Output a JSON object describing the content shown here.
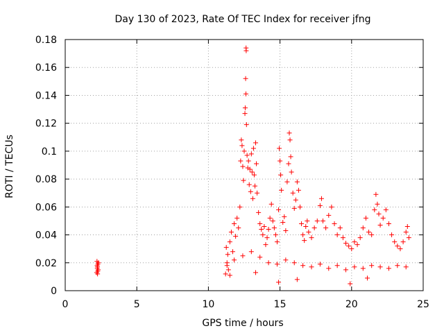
{
  "chart_data": {
    "type": "scatter",
    "title": "Day 130 of 2023, Rate Of TEC Index for receiver jfng",
    "xlabel": "GPS time / hours",
    "ylabel": "ROTI / TECUs",
    "xlim": [
      0,
      25
    ],
    "ylim": [
      0,
      0.18
    ],
    "xticks": [
      0,
      5,
      10,
      15,
      20,
      25
    ],
    "xtick_labels": [
      "0",
      "5",
      "10",
      "15",
      "20",
      "25"
    ],
    "yticks": [
      0,
      0.02,
      0.04,
      0.06,
      0.08,
      0.1,
      0.12,
      0.14,
      0.16,
      0.18
    ],
    "ytick_labels": [
      "0",
      "0.02",
      "0.04",
      "0.06",
      "0.08",
      "0.1",
      "0.12",
      "0.14",
      "0.16",
      "0.18"
    ],
    "grid": true,
    "legend": "none",
    "marker": "plus",
    "color": "#ff0000",
    "series": [
      {
        "name": "ROTI",
        "points": [
          [
            2.2,
            0.013
          ],
          [
            2.22,
            0.021
          ],
          [
            2.24,
            0.016
          ],
          [
            2.26,
            0.012
          ],
          [
            2.28,
            0.019
          ],
          [
            2.3,
            0.015
          ],
          [
            2.32,
            0.02
          ],
          [
            2.25,
            0.017
          ],
          [
            2.27,
            0.014
          ],
          [
            2.23,
            0.018
          ],
          [
            11.2,
            0.012
          ],
          [
            11.25,
            0.031
          ],
          [
            11.3,
            0.02
          ],
          [
            11.35,
            0.026
          ],
          [
            11.4,
            0.015
          ],
          [
            11.5,
            0.035
          ],
          [
            11.6,
            0.042
          ],
          [
            11.7,
            0.028
          ],
          [
            11.8,
            0.048
          ],
          [
            11.9,
            0.039
          ],
          [
            12.0,
            0.052
          ],
          [
            12.1,
            0.045
          ],
          [
            12.2,
            0.06
          ],
          [
            12.25,
            0.093
          ],
          [
            12.3,
            0.108
          ],
          [
            12.35,
            0.104
          ],
          [
            12.4,
            0.089
          ],
          [
            12.45,
            0.079
          ],
          [
            12.5,
            0.1
          ],
          [
            12.55,
            0.127
          ],
          [
            12.57,
            0.131
          ],
          [
            12.6,
            0.152
          ],
          [
            12.62,
            0.141
          ],
          [
            12.63,
            0.174
          ],
          [
            12.64,
            0.172
          ],
          [
            12.66,
            0.119
          ],
          [
            12.7,
            0.097
          ],
          [
            12.75,
            0.088
          ],
          [
            12.8,
            0.093
          ],
          [
            12.85,
            0.076
          ],
          [
            12.9,
            0.087
          ],
          [
            12.95,
            0.071
          ],
          [
            13.0,
            0.098
          ],
          [
            13.05,
            0.085
          ],
          [
            13.1,
            0.066
          ],
          [
            13.15,
            0.102
          ],
          [
            13.2,
            0.083
          ],
          [
            13.25,
            0.075
          ],
          [
            13.3,
            0.106
          ],
          [
            13.35,
            0.091
          ],
          [
            13.4,
            0.07
          ],
          [
            13.5,
            0.056
          ],
          [
            13.6,
            0.048
          ],
          [
            13.7,
            0.044
          ],
          [
            13.8,
            0.04
          ],
          [
            13.9,
            0.046
          ],
          [
            14.0,
            0.033
          ],
          [
            14.1,
            0.038
          ],
          [
            14.2,
            0.044
          ],
          [
            14.3,
            0.052
          ],
          [
            14.4,
            0.062
          ],
          [
            14.5,
            0.05
          ],
          [
            14.6,
            0.045
          ],
          [
            14.7,
            0.04
          ],
          [
            14.8,
            0.035
          ],
          [
            14.9,
            0.058
          ],
          [
            14.95,
            0.102
          ],
          [
            15.0,
            0.093
          ],
          [
            15.05,
            0.083
          ],
          [
            15.1,
            0.072
          ],
          [
            15.2,
            0.049
          ],
          [
            15.3,
            0.053
          ],
          [
            15.4,
            0.043
          ],
          [
            15.5,
            0.078
          ],
          [
            15.6,
            0.091
          ],
          [
            15.65,
            0.113
          ],
          [
            15.7,
            0.108
          ],
          [
            15.75,
            0.096
          ],
          [
            15.8,
            0.085
          ],
          [
            15.9,
            0.07
          ],
          [
            16.0,
            0.059
          ],
          [
            16.1,
            0.065
          ],
          [
            16.2,
            0.078
          ],
          [
            16.3,
            0.072
          ],
          [
            16.4,
            0.06
          ],
          [
            16.5,
            0.048
          ],
          [
            16.6,
            0.04
          ],
          [
            16.7,
            0.036
          ],
          [
            16.8,
            0.046
          ],
          [
            16.9,
            0.05
          ],
          [
            17.0,
            0.042
          ],
          [
            17.2,
            0.038
          ],
          [
            17.4,
            0.045
          ],
          [
            17.6,
            0.05
          ],
          [
            17.8,
            0.061
          ],
          [
            17.9,
            0.066
          ],
          [
            18.0,
            0.05
          ],
          [
            18.2,
            0.045
          ],
          [
            18.4,
            0.054
          ],
          [
            18.6,
            0.06
          ],
          [
            18.8,
            0.048
          ],
          [
            19.0,
            0.04
          ],
          [
            19.2,
            0.045
          ],
          [
            19.4,
            0.038
          ],
          [
            19.6,
            0.034
          ],
          [
            19.8,
            0.032
          ],
          [
            20.0,
            0.03
          ],
          [
            20.2,
            0.035
          ],
          [
            20.4,
            0.033
          ],
          [
            20.6,
            0.038
          ],
          [
            20.8,
            0.045
          ],
          [
            21.0,
            0.052
          ],
          [
            21.2,
            0.042
          ],
          [
            21.4,
            0.04
          ],
          [
            21.6,
            0.058
          ],
          [
            21.7,
            0.069
          ],
          [
            21.8,
            0.062
          ],
          [
            21.9,
            0.055
          ],
          [
            22.0,
            0.047
          ],
          [
            22.2,
            0.052
          ],
          [
            22.4,
            0.058
          ],
          [
            22.6,
            0.048
          ],
          [
            22.8,
            0.04
          ],
          [
            23.0,
            0.035
          ],
          [
            23.2,
            0.032
          ],
          [
            23.4,
            0.03
          ],
          [
            23.6,
            0.035
          ],
          [
            23.8,
            0.042
          ],
          [
            23.9,
            0.046
          ],
          [
            24.0,
            0.038
          ],
          [
            11.3,
            0.018
          ],
          [
            11.8,
            0.022
          ],
          [
            12.4,
            0.025
          ],
          [
            13.0,
            0.028
          ],
          [
            13.6,
            0.024
          ],
          [
            14.2,
            0.02
          ],
          [
            14.8,
            0.019
          ],
          [
            15.4,
            0.022
          ],
          [
            16.0,
            0.02
          ],
          [
            16.6,
            0.018
          ],
          [
            17.2,
            0.017
          ],
          [
            17.8,
            0.019
          ],
          [
            18.4,
            0.016
          ],
          [
            19.0,
            0.018
          ],
          [
            19.6,
            0.015
          ],
          [
            20.2,
            0.017
          ],
          [
            20.8,
            0.016
          ],
          [
            21.4,
            0.018
          ],
          [
            22.0,
            0.017
          ],
          [
            22.6,
            0.016
          ],
          [
            23.2,
            0.018
          ],
          [
            23.8,
            0.017
          ],
          [
            14.9,
            0.006
          ],
          [
            16.2,
            0.008
          ],
          [
            19.9,
            0.005
          ],
          [
            21.1,
            0.009
          ],
          [
            11.5,
            0.011
          ],
          [
            13.3,
            0.013
          ]
        ]
      }
    ]
  }
}
